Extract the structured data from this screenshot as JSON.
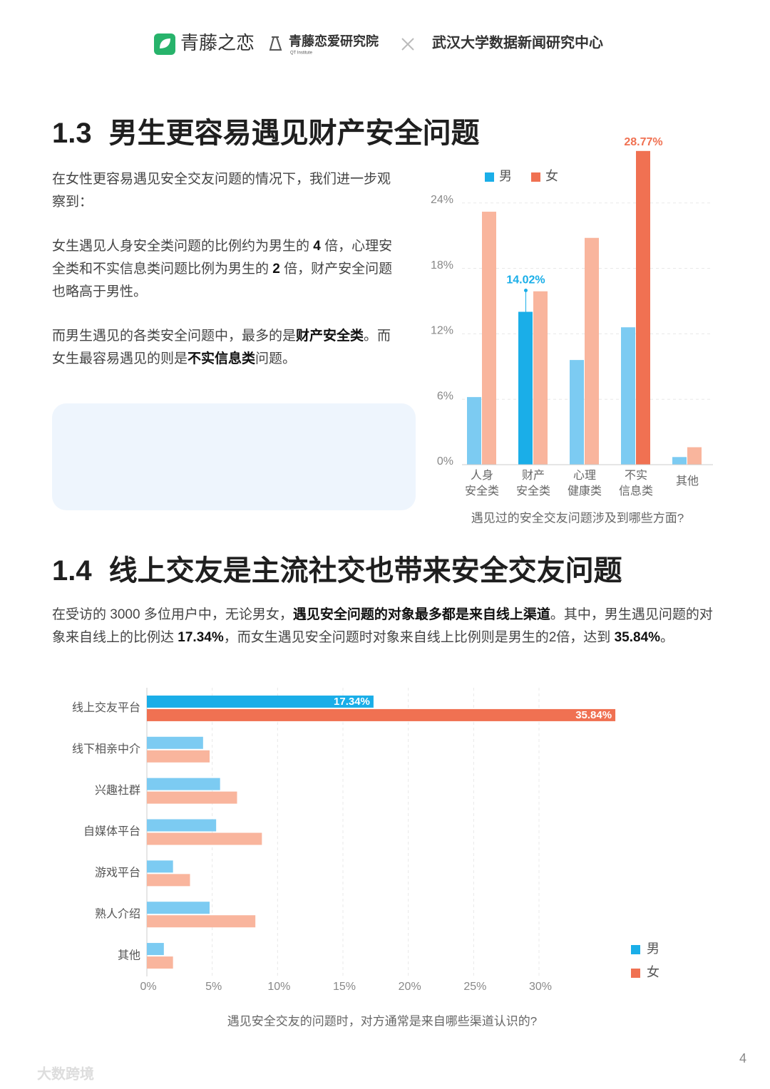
{
  "header": {
    "brand": "青藤之恋",
    "institute": "青藤恋爱研究院",
    "institute_en": "QT Institute",
    "partner": "武汉大学数据新闻研究中心"
  },
  "sections": [
    {
      "number": "1.3",
      "title": "男生更容易遇见财产安全问题",
      "paragraphs": [
        [
          {
            "text": "在女性更容易遇见安全交友问题的情况下，我们进一步观察到："
          }
        ],
        [
          {
            "text": "女生遇见人身安全类问题的比例约为男生的 "
          },
          {
            "text": "4",
            "bold": true
          },
          {
            "text": " 倍，心理安全类和不实信息类问题比例为男生的 "
          },
          {
            "text": "2",
            "bold": true
          },
          {
            "text": " 倍，财产安全问题也略高于男性。"
          }
        ],
        [
          {
            "text": "而男生遇见的各类安全问题中，最多的是"
          },
          {
            "text": "财产安全类",
            "bold": true
          },
          {
            "text": "。而女生最容易遇见的则是"
          },
          {
            "text": "不实信息类",
            "bold": true
          },
          {
            "text": "问题。"
          }
        ]
      ]
    },
    {
      "number": "1.4",
      "title": "线上交友是主流社交也带来安全交友问题",
      "paragraphs": [
        [
          {
            "text": "在受访的 3000 多位用户中，无论男女，"
          },
          {
            "text": "遇见安全问题的对象最多都是来自线上渠道",
            "bold": true
          },
          {
            "text": "。其中，男生遇见问题的对象来自线上的比例达 "
          },
          {
            "text": "17.34%",
            "bold": true
          },
          {
            "text": "，而女生遇见安全问题时对象来自线上比例则是男生的2倍，达到 "
          },
          {
            "text": "35.84%",
            "bold": true
          },
          {
            "text": "。"
          }
        ]
      ]
    }
  ],
  "chart_data": [
    {
      "type": "bar",
      "horizontal": false,
      "caption": "遇见过的安全交友问题涉及到哪些方面?",
      "categories": [
        "人身\n安全类",
        "财产\n安全类",
        "心理\n健康类",
        "不实\n信息类",
        "其他"
      ],
      "series": [
        {
          "name": "男",
          "color": "#1aaee8",
          "colors": [
            "#7ccbf2",
            "#1aaee8",
            "#7ccbf2",
            "#7ccbf2",
            "#7ccbf2"
          ],
          "values": [
            6.2,
            14.02,
            9.6,
            12.6,
            0.7
          ],
          "value_labels": [
            null,
            "14.02%",
            null,
            null,
            null
          ]
        },
        {
          "name": "女",
          "color": "#f07152",
          "colors": [
            "#f9b59d",
            "#f9b59d",
            "#f9b59d",
            "#f07152",
            "#f9b59d"
          ],
          "values": [
            23.2,
            15.9,
            20.8,
            28.77,
            1.6
          ],
          "value_labels": [
            null,
            null,
            null,
            "28.77%",
            null
          ]
        }
      ],
      "ylim": [
        0,
        30
      ],
      "yticks": [
        {
          "value": 0,
          "label": "0%"
        },
        {
          "value": 6,
          "label": "6%"
        },
        {
          "value": 12,
          "label": "12%"
        },
        {
          "value": 18,
          "label": "18%"
        },
        {
          "value": 24,
          "label": "24%"
        }
      ],
      "grid": true,
      "legend": "top-left"
    },
    {
      "type": "bar",
      "horizontal": true,
      "caption": "遇见安全交友的问题时，对方通常是来自哪些渠道认识的?",
      "categories": [
        "线上交友平台",
        "线下相亲中介",
        "兴趣社群",
        "自媒体平台",
        "游戏平台",
        "熟人介绍",
        "其他"
      ],
      "series": [
        {
          "name": "男",
          "color": "#1aaee8",
          "colors": [
            "#1aaee8",
            "#7ccbf2",
            "#7ccbf2",
            "#7ccbf2",
            "#7ccbf2",
            "#7ccbf2",
            "#7ccbf2"
          ],
          "values": [
            17.34,
            4.3,
            5.6,
            5.3,
            2.0,
            4.8,
            1.3
          ],
          "value_labels": [
            "17.34%",
            null,
            null,
            null,
            null,
            null,
            null
          ]
        },
        {
          "name": "女",
          "color": "#f07152",
          "colors": [
            "#f07152",
            "#f9b59d",
            "#f9b59d",
            "#f9b59d",
            "#f9b59d",
            "#f9b59d",
            "#f9b59d"
          ],
          "values": [
            35.84,
            4.8,
            6.9,
            8.8,
            3.3,
            8.3,
            2.0
          ],
          "value_labels": [
            "35.84%",
            null,
            null,
            null,
            null,
            null,
            null
          ]
        }
      ],
      "xlim": [
        0,
        36
      ],
      "xticks": [
        {
          "value": 0,
          "label": "0%"
        },
        {
          "value": 5,
          "label": "5%"
        },
        {
          "value": 10,
          "label": "10%"
        },
        {
          "value": 15,
          "label": "15%"
        },
        {
          "value": 20,
          "label": "20%"
        },
        {
          "value": 25,
          "label": "25%"
        },
        {
          "value": 30,
          "label": "30%"
        }
      ],
      "grid": true,
      "legend": "bottom-right"
    }
  ],
  "page_number": "4",
  "watermark": "大数跨境"
}
